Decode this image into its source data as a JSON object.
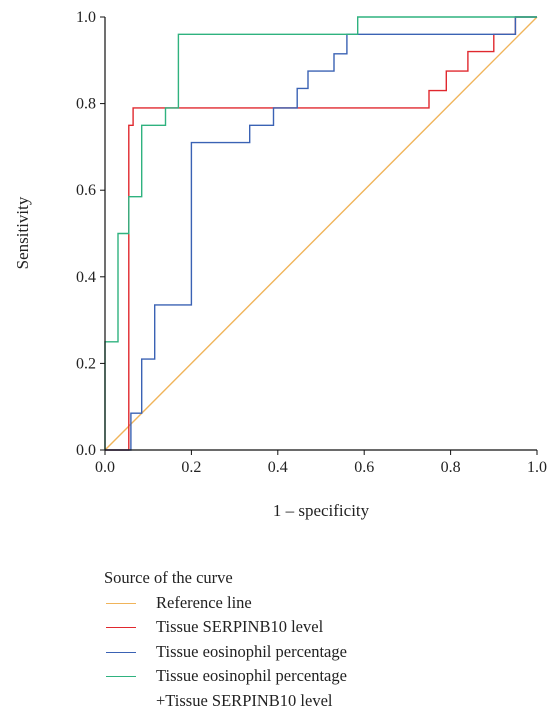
{
  "chart_data": {
    "type": "line",
    "title": "",
    "xlabel": "1 – specificity",
    "ylabel": "Sensitivity",
    "xlim": [
      0,
      1
    ],
    "ylim": [
      0,
      1
    ],
    "xticks": [
      0,
      0.2,
      0.4,
      0.6,
      0.8,
      1
    ],
    "yticks": [
      0,
      0.2,
      0.4,
      0.6,
      0.8,
      1
    ],
    "xtick_labels": [
      "0.0",
      "0.2",
      "0.4",
      "0.6",
      "0.8",
      "1.0"
    ],
    "ytick_labels": [
      "0.0",
      "0.2",
      "0.4",
      "0.6",
      "0.8",
      "1.0"
    ],
    "grid": false,
    "legend_title": "Source of the curve",
    "legend_position": "bottom-left",
    "series": [
      {
        "name": "Reference line",
        "color": "#f0b45a",
        "x": [
          0,
          1
        ],
        "y": [
          0,
          1
        ]
      },
      {
        "name": "Tissue SERPINB10 level",
        "color": "#e0282e",
        "x": [
          0,
          0.055,
          0.055,
          0.065,
          0.065,
          0.09,
          0.09,
          0.75,
          0.75,
          0.79,
          0.79,
          0.84,
          0.84,
          0.9,
          0.9,
          0.95,
          0.95,
          1
        ],
        "y": [
          0,
          0,
          0.75,
          0.75,
          0.79,
          0.79,
          0.79,
          0.79,
          0.83,
          0.83,
          0.875,
          0.875,
          0.92,
          0.92,
          0.96,
          0.96,
          1,
          1
        ]
      },
      {
        "name": "Tissue eosinophil percentage",
        "color": "#3a62b4",
        "x": [
          0,
          0.06,
          0.06,
          0.085,
          0.085,
          0.115,
          0.115,
          0.2,
          0.2,
          0.335,
          0.335,
          0.39,
          0.39,
          0.445,
          0.445,
          0.47,
          0.47,
          0.53,
          0.53,
          0.56,
          0.56,
          0.6,
          0.6,
          0.95,
          0.95,
          1
        ],
        "y": [
          0,
          0,
          0.085,
          0.085,
          0.21,
          0.21,
          0.335,
          0.335,
          0.71,
          0.71,
          0.75,
          0.75,
          0.79,
          0.79,
          0.835,
          0.835,
          0.875,
          0.875,
          0.915,
          0.915,
          0.96,
          0.96,
          0.96,
          0.96,
          1,
          1
        ]
      },
      {
        "name": "Tissue eosinophil percentage\n+Tissue SERPINB10 level",
        "color": "#2fb27f",
        "x": [
          0,
          0,
          0.03,
          0.03,
          0.055,
          0.055,
          0.085,
          0.085,
          0.14,
          0.14,
          0.17,
          0.17,
          0.585,
          0.585,
          1,
          1
        ],
        "y": [
          0,
          0.25,
          0.25,
          0.5,
          0.5,
          0.585,
          0.585,
          0.75,
          0.75,
          0.79,
          0.79,
          0.96,
          0.96,
          1,
          1,
          1
        ]
      }
    ]
  }
}
